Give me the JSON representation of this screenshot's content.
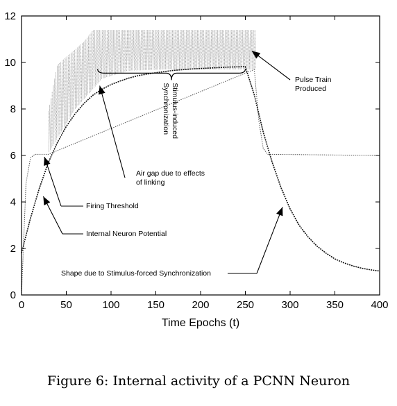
{
  "caption": "Figure 6: Internal activity of a PCNN Neuron",
  "chart_data": {
    "type": "line",
    "title": "",
    "xlabel": "Time Epochs (t)",
    "ylabel": "",
    "xlim": [
      0,
      400
    ],
    "ylim": [
      0,
      12
    ],
    "xticks": [
      0,
      50,
      100,
      150,
      200,
      250,
      300,
      350,
      400
    ],
    "yticks": [
      0,
      2,
      4,
      6,
      8,
      10,
      12
    ],
    "grid": false,
    "legend": "none",
    "series": [
      {
        "role": "internal-potential",
        "color": "#111111",
        "x": [
          0,
          10,
          20,
          30,
          40,
          50,
          60,
          70,
          80,
          90,
          100,
          110,
          120,
          130,
          140,
          150,
          160,
          170,
          180,
          190,
          200,
          210,
          220,
          230,
          240,
          250,
          260,
          270,
          280,
          290,
          300,
          310,
          320,
          330,
          340,
          350,
          360,
          370,
          380,
          390,
          400
        ],
        "y": [
          1.8,
          3.3,
          4.6,
          5.7,
          6.55,
          7.25,
          7.8,
          8.25,
          8.6,
          8.85,
          9.05,
          9.2,
          9.33,
          9.43,
          9.5,
          9.56,
          9.61,
          9.66,
          9.69,
          9.72,
          9.74,
          9.76,
          9.78,
          9.8,
          9.81,
          9.82,
          8.6,
          7.0,
          5.7,
          4.6,
          3.7,
          3.0,
          2.5,
          2.1,
          1.8,
          1.55,
          1.38,
          1.25,
          1.15,
          1.08,
          1.03
        ]
      },
      {
        "role": "firing-threshold",
        "color": "#555555",
        "x": [
          0,
          5,
          10,
          15,
          20,
          25,
          30,
          260,
          265,
          270,
          275,
          400
        ],
        "y": [
          0.0,
          4.8,
          5.9,
          6.05,
          6.05,
          6.05,
          6.05,
          9.7,
          7.5,
          6.3,
          6.05,
          6.0
        ]
      },
      {
        "role": "pulse-train",
        "color": "#8a8a8a",
        "x_start": 30,
        "x_end": 262,
        "upper": [
          [
            30,
            7.9
          ],
          [
            40,
            9.9
          ],
          [
            55,
            10.4
          ],
          [
            70,
            10.9
          ],
          [
            80,
            11.4
          ],
          [
            260,
            11.4
          ]
        ],
        "lower": [
          [
            30,
            6.1
          ],
          [
            60,
            8.0
          ],
          [
            90,
            9.3
          ],
          [
            120,
            9.65
          ],
          [
            160,
            9.7
          ],
          [
            260,
            9.7
          ]
        ]
      }
    ],
    "annotations": [
      {
        "text": "Stimulus-induced Synchronization",
        "lines": [
          "Stimulus-induced",
          "Synchronization"
        ],
        "rotation": 90,
        "bracket_x": [
          85,
          250
        ],
        "bracket_y": 9.6
      },
      {
        "text": "Pulse Train Produced",
        "lines": [
          "Pulse Train",
          "Produced"
        ],
        "arrow_to": [
          254,
          10.5
        ]
      },
      {
        "text": "Air gap due to effects of linking",
        "lines": [
          "Air gap due to effects",
          "of linking"
        ],
        "arrow_to": [
          85,
          9.0
        ]
      },
      {
        "text": "Firing Threshold",
        "lines": [
          "Firing Threshold"
        ],
        "arrow_to": [
          24,
          6.0
        ]
      },
      {
        "text": "Internal Neuron Potential",
        "lines": [
          "Internal Neuron Potential"
        ],
        "arrow_to": [
          22,
          4.3
        ]
      },
      {
        "text": "Shape due to Stimulus-forced Synchronization",
        "lines": [
          "Shape due to Stimulus-forced Synchronization"
        ],
        "arrow_to": [
          290,
          3.9
        ]
      }
    ]
  }
}
